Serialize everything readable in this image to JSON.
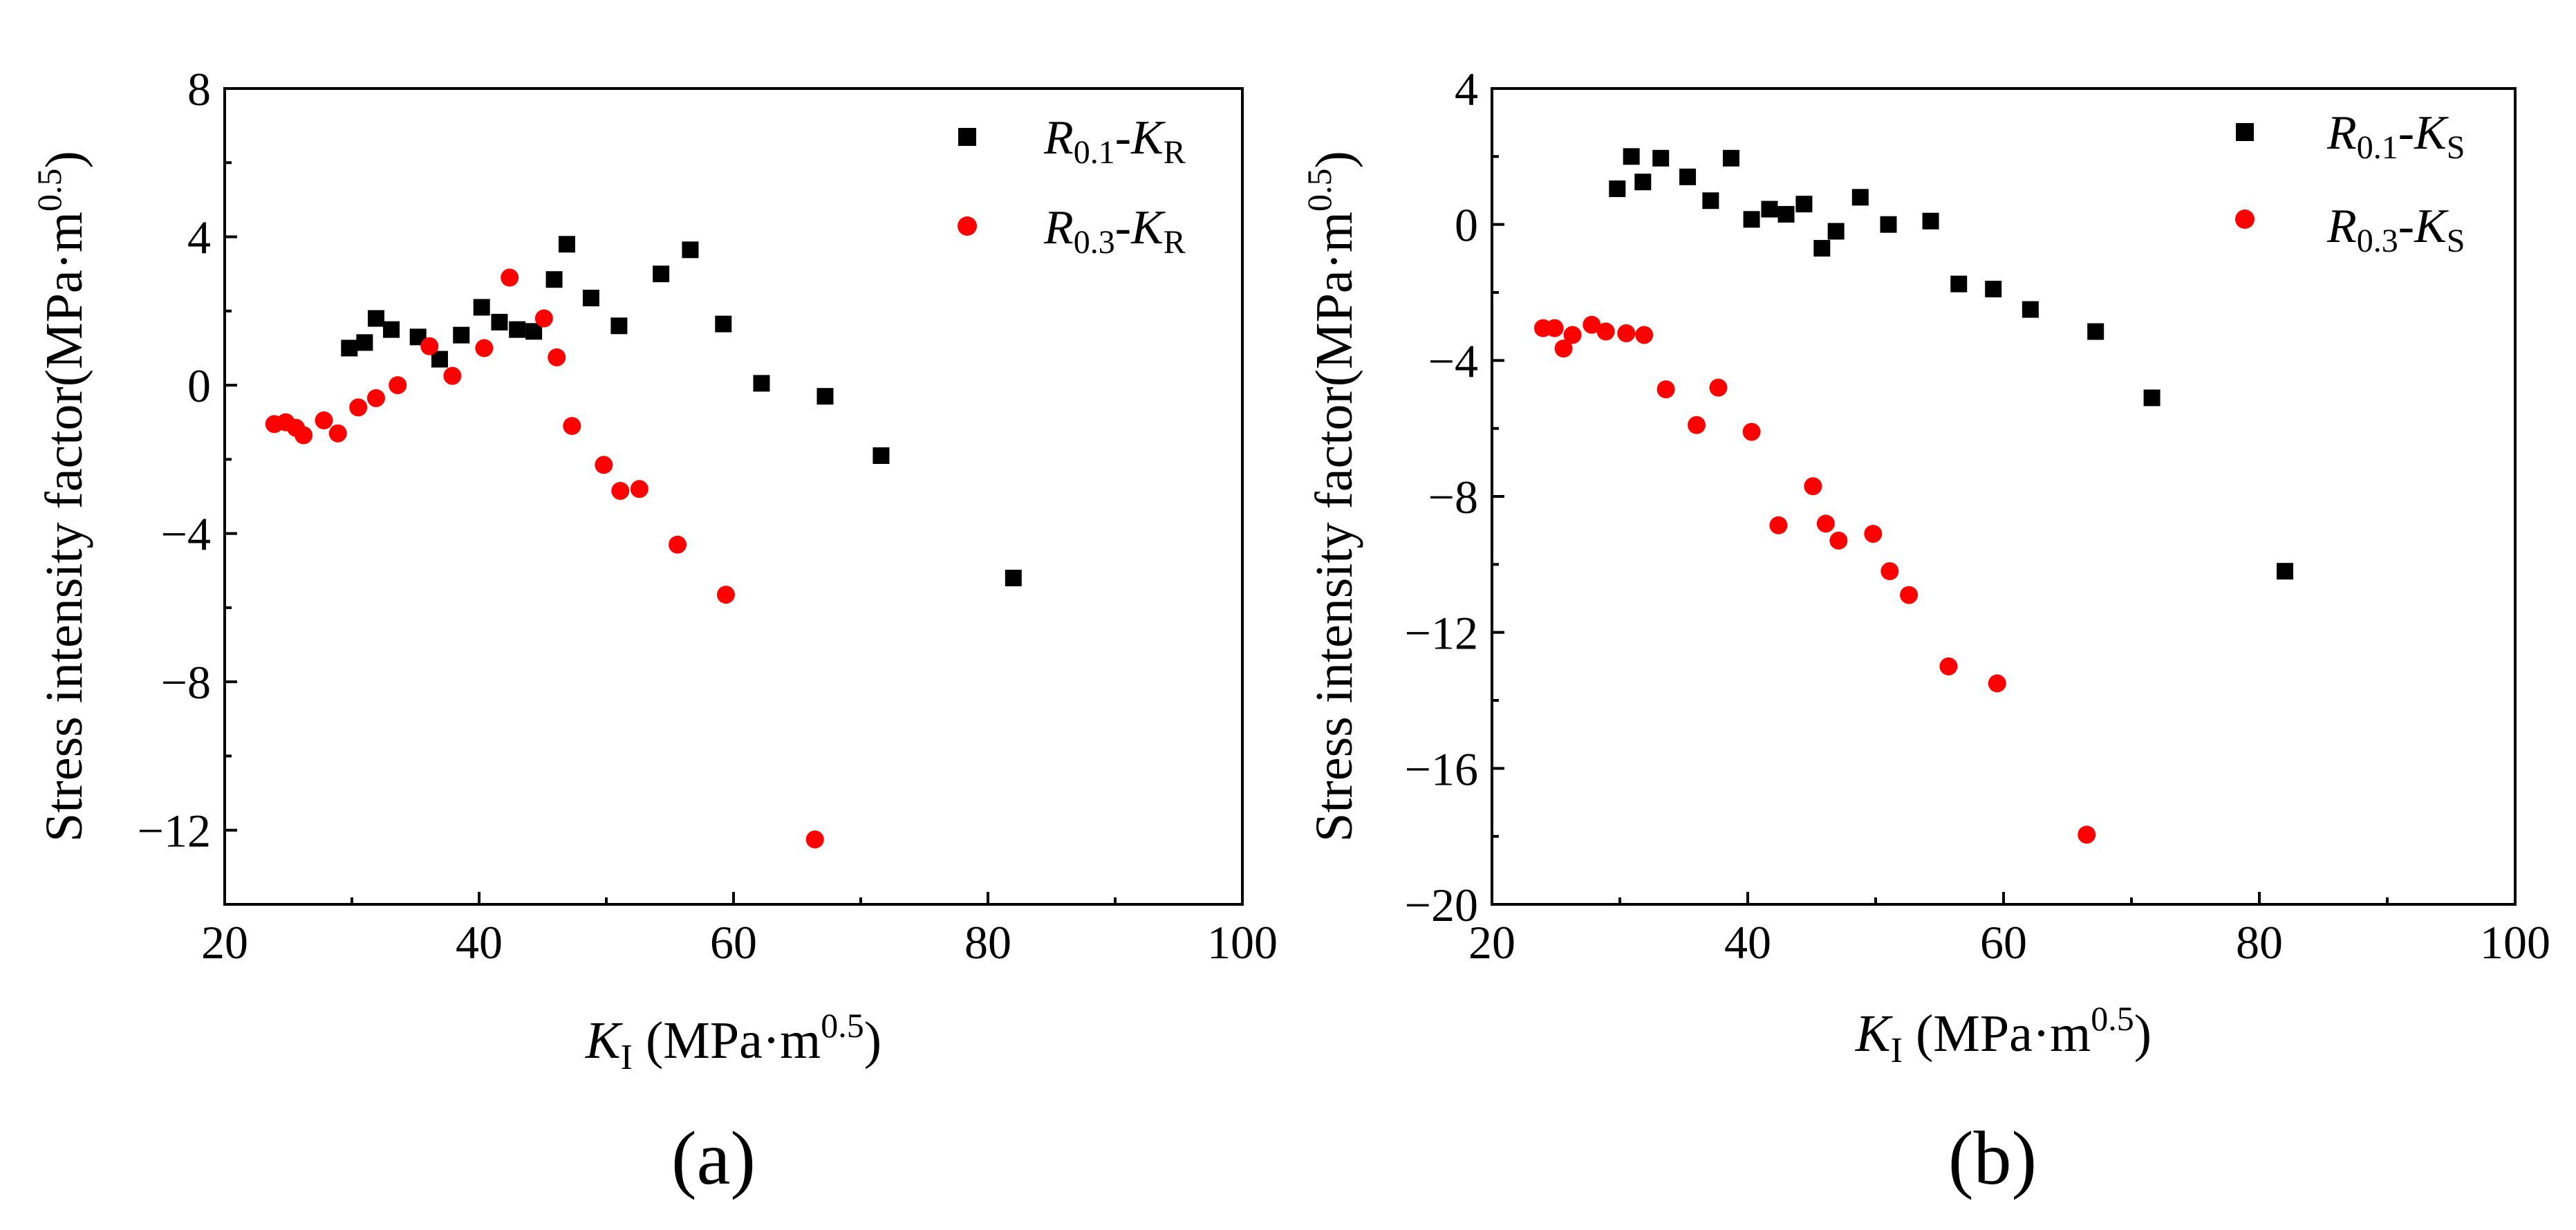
{
  "chart_data": [
    {
      "type": "scatter",
      "panel_label": "(a)",
      "title": "",
      "xlabel": {
        "italic": "K",
        "sub": "I",
        "rest": " (MPa·m",
        "sup": "0.5",
        "end": ")"
      },
      "ylabel": {
        "text": "Stress intensity factor(MPa·m",
        "sup": "0.5",
        "end": ")"
      },
      "xlim": [
        20,
        100
      ],
      "ylim": [
        -14,
        8
      ],
      "xticks": [
        20,
        40,
        60,
        80,
        100
      ],
      "xtick_labels": [
        "20",
        "40",
        "60",
        "80",
        "100"
      ],
      "yticks": [
        -12,
        -8,
        -4,
        0,
        4,
        8
      ],
      "ytick_labels": [
        "−12",
        "−8",
        "−4",
        "0",
        "4",
        "8"
      ],
      "grid": false,
      "legend_position": "top-right",
      "series": [
        {
          "name": "R0.1-KR",
          "label_parts": {
            "a": "R",
            "a_sub": "0.1",
            "b": "K",
            "b_sub": "R"
          },
          "marker": "square",
          "color": "#000000",
          "points": [
            [
              29.8,
              1.0
            ],
            [
              31.0,
              1.15
            ],
            [
              31.9,
              1.8
            ],
            [
              33.1,
              1.5
            ],
            [
              35.2,
              1.3
            ],
            [
              36.9,
              0.7
            ],
            [
              38.6,
              1.35
            ],
            [
              40.2,
              2.1
            ],
            [
              41.6,
              1.7
            ],
            [
              43.0,
              1.5
            ],
            [
              44.3,
              1.45
            ],
            [
              45.9,
              2.85
            ],
            [
              46.9,
              3.8
            ],
            [
              48.8,
              2.35
            ],
            [
              51.0,
              1.6
            ],
            [
              54.3,
              3.0
            ],
            [
              56.6,
              3.65
            ],
            [
              59.2,
              1.65
            ],
            [
              62.2,
              0.05
            ],
            [
              67.2,
              -0.3
            ],
            [
              71.6,
              -1.9
            ],
            [
              82.0,
              -5.2
            ]
          ]
        },
        {
          "name": "R0.3-KR",
          "label_parts": {
            "a": "R",
            "a_sub": "0.3",
            "b": "K",
            "b_sub": "R"
          },
          "marker": "circle",
          "color": "#ff0000",
          "points": [
            [
              23.9,
              -1.05
            ],
            [
              24.8,
              -1.0
            ],
            [
              25.6,
              -1.15
            ],
            [
              26.2,
              -1.35
            ],
            [
              27.8,
              -0.95
            ],
            [
              28.9,
              -1.3
            ],
            [
              30.5,
              -0.6
            ],
            [
              31.9,
              -0.35
            ],
            [
              33.6,
              0.0
            ],
            [
              36.1,
              1.05
            ],
            [
              37.9,
              0.25
            ],
            [
              40.4,
              1.0
            ],
            [
              42.4,
              2.9
            ],
            [
              45.1,
              1.8
            ],
            [
              46.1,
              0.75
            ],
            [
              47.3,
              -1.1
            ],
            [
              49.8,
              -2.15
            ],
            [
              51.1,
              -2.85
            ],
            [
              52.6,
              -2.8
            ],
            [
              55.6,
              -4.3
            ],
            [
              59.4,
              -5.65
            ],
            [
              66.4,
              -12.25
            ]
          ]
        }
      ]
    },
    {
      "type": "scatter",
      "panel_label": "(b)",
      "title": "",
      "xlabel": {
        "italic": "K",
        "sub": "I",
        "rest": " (MPa·m",
        "sup": "0.5",
        "end": ")"
      },
      "ylabel": {
        "text": "Stress intensity factor(MPa·m",
        "sup": "0.5",
        "end": ")"
      },
      "xlim": [
        20,
        100
      ],
      "ylim": [
        -20,
        4
      ],
      "xticks": [
        20,
        40,
        60,
        80,
        100
      ],
      "xtick_labels": [
        "20",
        "40",
        "60",
        "80",
        "100"
      ],
      "yticks": [
        -20,
        -16,
        -12,
        -8,
        -4,
        0,
        4
      ],
      "ytick_labels": [
        "−20",
        "−16",
        "−12",
        "−8",
        "−4",
        "0",
        "4"
      ],
      "grid": false,
      "legend_position": "top-right",
      "series": [
        {
          "name": "R0.1-KS",
          "label_parts": {
            "a": "R",
            "a_sub": "0.1",
            "b": "K",
            "b_sub": "S"
          },
          "marker": "square",
          "color": "#000000",
          "points": [
            [
              29.8,
              1.05
            ],
            [
              30.9,
              2.0
            ],
            [
              31.8,
              1.25
            ],
            [
              33.2,
              1.95
            ],
            [
              35.3,
              1.4
            ],
            [
              37.1,
              0.7
            ],
            [
              38.7,
              1.95
            ],
            [
              40.3,
              0.15
            ],
            [
              41.7,
              0.45
            ],
            [
              43.0,
              0.3
            ],
            [
              44.4,
              0.6
            ],
            [
              45.8,
              -0.7
            ],
            [
              46.9,
              -0.2
            ],
            [
              48.8,
              0.8
            ],
            [
              51.0,
              0.0
            ],
            [
              54.3,
              0.1
            ],
            [
              56.5,
              -1.75
            ],
            [
              59.2,
              -1.9
            ],
            [
              62.1,
              -2.5
            ],
            [
              67.2,
              -3.15
            ],
            [
              71.6,
              -5.1
            ],
            [
              82.0,
              -10.2
            ]
          ]
        },
        {
          "name": "R0.3-KS",
          "label_parts": {
            "a": "R",
            "a_sub": "0.3",
            "b": "K",
            "b_sub": "S"
          },
          "marker": "circle",
          "color": "#ff0000",
          "points": [
            [
              24.0,
              -3.05
            ],
            [
              24.9,
              -3.05
            ],
            [
              25.6,
              -3.65
            ],
            [
              26.3,
              -3.25
            ],
            [
              27.8,
              -2.95
            ],
            [
              28.9,
              -3.15
            ],
            [
              30.5,
              -3.2
            ],
            [
              31.9,
              -3.25
            ],
            [
              33.6,
              -4.85
            ],
            [
              36.0,
              -5.9
            ],
            [
              37.7,
              -4.8
            ],
            [
              40.3,
              -6.1
            ],
            [
              42.4,
              -8.85
            ],
            [
              45.1,
              -7.7
            ],
            [
              46.1,
              -8.8
            ],
            [
              47.1,
              -9.3
            ],
            [
              49.8,
              -9.1
            ],
            [
              51.1,
              -10.2
            ],
            [
              52.6,
              -10.9
            ],
            [
              55.7,
              -13.0
            ],
            [
              59.5,
              -13.5
            ],
            [
              66.5,
              -17.95
            ]
          ]
        }
      ]
    }
  ]
}
